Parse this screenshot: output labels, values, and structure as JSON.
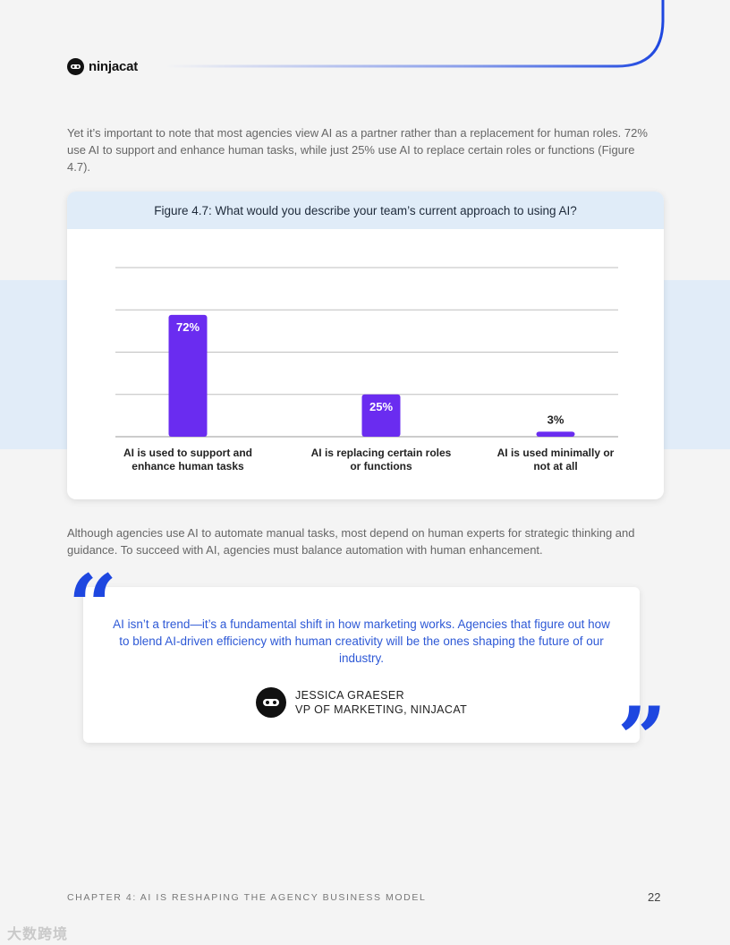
{
  "brand": {
    "name": "ninjacat",
    "accent": "#1e47e0"
  },
  "intro_paragraph": "Yet it’s important to note that most agencies view AI as a partner rather than a replacement for human roles. 72% use AI to support and enhance human tasks, while just 25% use AI to replace certain roles or functions (Figure 4.7).",
  "figure": {
    "title": "Figure 4.7: What would you describe your team’s current approach to using AI?"
  },
  "chart_data": {
    "type": "bar",
    "title": "Figure 4.7: What would you describe your team’s current approach to using AI?",
    "categories": [
      "AI is used to support and enhance human tasks",
      "AI is replacing certain roles or functions",
      "AI is used minimally or not at all"
    ],
    "category_lines": [
      [
        "AI is used to support and",
        "enhance human tasks"
      ],
      [
        "AI is replacing certain roles",
        "or functions"
      ],
      [
        "AI is used minimally or",
        "not at all"
      ]
    ],
    "values": [
      72,
      25,
      3
    ],
    "value_labels": [
      "72%",
      "25%",
      "3%"
    ],
    "ylim": [
      0,
      100
    ],
    "grid": true,
    "bar_color": "#6a2cf0"
  },
  "body_paragraph": "Although agencies use AI to automate manual tasks, most depend on human experts for strategic thinking and guidance. To succeed with AI, agencies must balance automation with human enhancement.",
  "quote": {
    "text": "AI isn’t a trend—it’s a fundamental shift in how marketing works. Agencies that figure out how to blend AI-driven efficiency with human creativity will be the ones shaping the future of our industry.",
    "author_name": "JESSICA GRAESER",
    "author_title": "VP OF MARKETING, NINJACAT",
    "open_mark": "“",
    "close_mark": "”"
  },
  "footer": {
    "chapter": "CHAPTER 4: AI IS RESHAPING THE AGENCY BUSINESS MODEL",
    "page_number": "22"
  },
  "watermark": "大数跨境"
}
